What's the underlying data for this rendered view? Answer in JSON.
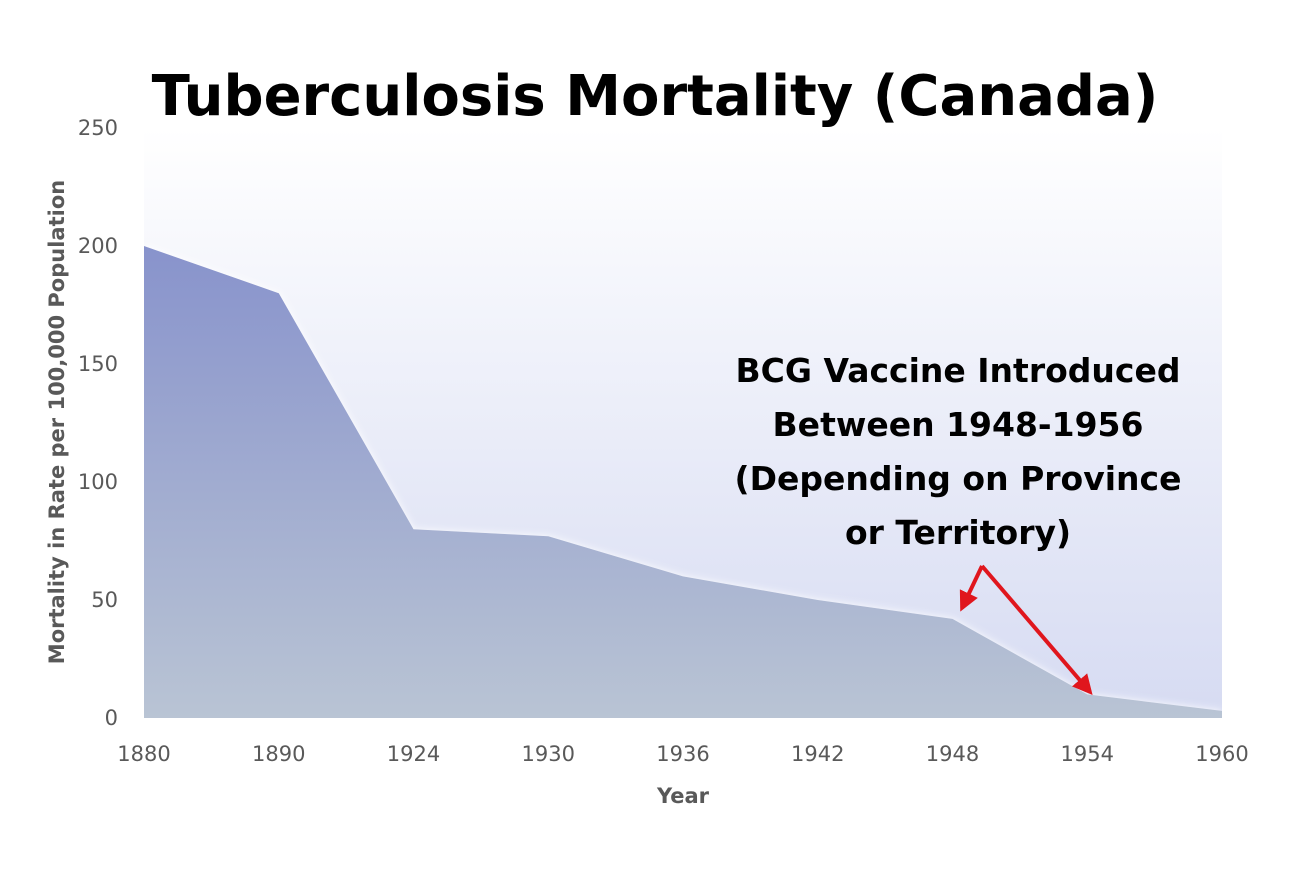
{
  "chart_data": {
    "type": "area",
    "title": "Tuberculosis Mortality (Canada)",
    "xlabel": "Year",
    "ylabel": "Mortality in Rate per 100,000 Population",
    "categories": [
      "1880",
      "1890",
      "1924",
      "1930",
      "1936",
      "1942",
      "1948",
      "1954",
      "1960"
    ],
    "values": [
      200,
      180,
      80,
      77,
      60,
      50,
      42,
      10,
      3
    ],
    "ylim": [
      0,
      250
    ],
    "yticks": [
      "0",
      "50",
      "100",
      "150",
      "200",
      "250"
    ],
    "grid": false,
    "legend": "none",
    "annotation": {
      "lines": [
        "BCG Vaccine Introduced",
        "Between 1948-1956",
        "(Depending on Province",
        "or Territory)"
      ],
      "points_to": [
        "1948",
        "1954"
      ]
    },
    "colors": {
      "area_top": "#8893cc",
      "area_bottom": "#b9c4d4",
      "plot_bg_top": "#ffffff",
      "plot_bg_bottom": "#d6dbf2",
      "arrow": "#e0161d"
    }
  }
}
